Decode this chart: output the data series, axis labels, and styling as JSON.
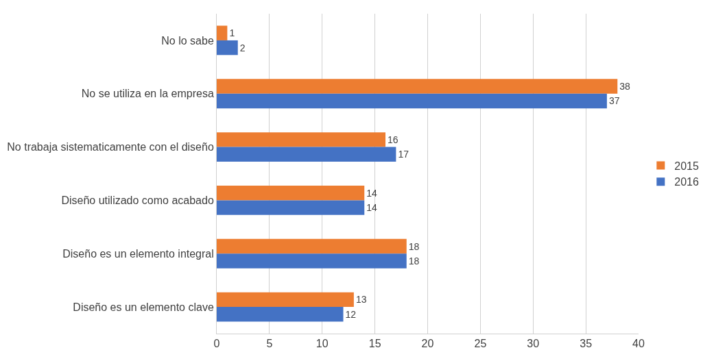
{
  "chart_data": {
    "type": "bar",
    "orientation": "horizontal",
    "categories": [
      "No lo sabe",
      "No se utiliza en la empresa",
      "No trabaja sistematicamente con el diseño",
      "Diseño utilizado como acabado",
      "Diseño es un elemento integral",
      "Diseño es un elemento clave"
    ],
    "series": [
      {
        "name": "2015",
        "color": "#ed7d31",
        "values": [
          1,
          38,
          16,
          14,
          18,
          13
        ]
      },
      {
        "name": "2016",
        "color": "#4472c4",
        "values": [
          2,
          37,
          17,
          14,
          18,
          12
        ]
      }
    ],
    "xlim": [
      0,
      40
    ],
    "xticks": [
      0,
      5,
      10,
      15,
      20,
      25,
      30,
      35,
      40
    ],
    "grid": "x",
    "legend": "right",
    "data_labels": true
  }
}
